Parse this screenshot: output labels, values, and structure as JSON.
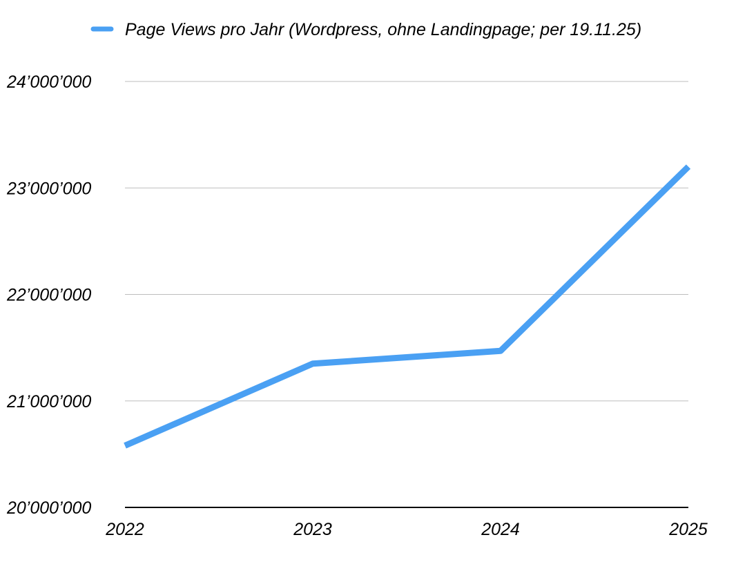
{
  "chart_data": {
    "type": "line",
    "x": [
      "2022",
      "2023",
      "2024",
      "2025"
    ],
    "series": [
      {
        "name": "Page Views pro Jahr (Wordpress, ohne Landingpage; per 19.11.25)",
        "values": [
          20580000,
          21350000,
          21470000,
          23200000
        ],
        "color": "#4aa0f3"
      }
    ],
    "ylim": [
      20000000,
      24000000
    ],
    "yticks": [
      20000000,
      21000000,
      22000000,
      23000000,
      24000000
    ],
    "ytick_labels": [
      "20’000’000",
      "21’000’000",
      "22’000’000",
      "23’000’000",
      "24’000’000"
    ],
    "xtick_labels": [
      "2022",
      "2023",
      "2024",
      "2025"
    ],
    "grid": true,
    "legend_position": "top"
  }
}
